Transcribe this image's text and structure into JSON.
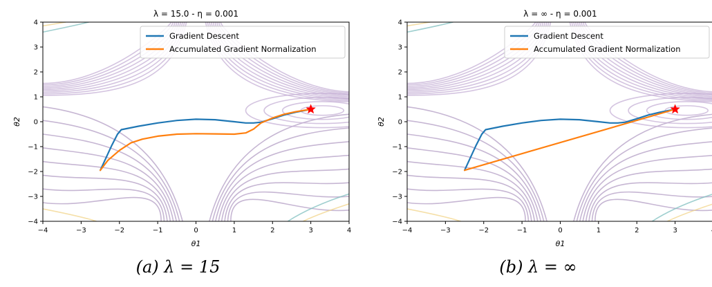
{
  "chart_data": [
    {
      "type": "line",
      "title": "λ = 15.0 - η = 0.001",
      "xlabel": "θ1",
      "ylabel": "θ2",
      "xlim": [
        -4,
        4
      ],
      "ylim": [
        -4,
        4
      ],
      "xticks": [
        -4,
        -3,
        -2,
        -1,
        0,
        1,
        2,
        3,
        4
      ],
      "yticks": [
        -4,
        -3,
        -2,
        -1,
        0,
        1,
        2,
        3,
        4
      ],
      "legend_position": "top-right",
      "target_point": {
        "x": 3,
        "y": 0.5,
        "marker": "star",
        "color": "#ff0000"
      },
      "series": [
        {
          "name": "Gradient Descent",
          "color": "#1f77b4",
          "x": [
            -2.5,
            -2.35,
            -2.2,
            -2.05,
            -1.95,
            -1.5,
            -1.0,
            -0.5,
            0,
            0.5,
            1.0,
            1.3,
            1.5,
            1.7,
            2.0,
            2.3,
            2.6,
            3.0
          ],
          "y": [
            -1.95,
            -1.45,
            -0.95,
            -0.5,
            -0.32,
            -0.18,
            -0.05,
            0.05,
            0.1,
            0.08,
            0.0,
            -0.05,
            -0.05,
            -0.02,
            0.12,
            0.27,
            0.38,
            0.5
          ]
        },
        {
          "name": "Accumulated Gradient Normalization",
          "color": "#ff7f0e",
          "x": [
            -2.5,
            -2.3,
            -2.0,
            -1.7,
            -1.4,
            -1.0,
            -0.5,
            0,
            0.5,
            1.0,
            1.3,
            1.5,
            1.7,
            2.0,
            2.3,
            2.6,
            3.0
          ],
          "y": [
            -1.95,
            -1.55,
            -1.15,
            -0.85,
            -0.7,
            -0.58,
            -0.5,
            -0.48,
            -0.49,
            -0.5,
            -0.45,
            -0.3,
            -0.05,
            0.15,
            0.3,
            0.4,
            0.5
          ]
        }
      ]
    },
    {
      "type": "line",
      "title": "λ = ∞ - η = 0.001",
      "xlabel": "θ1",
      "ylabel": "θ2",
      "xlim": [
        -4,
        4
      ],
      "ylim": [
        -4,
        4
      ],
      "xticks": [
        -4,
        -3,
        -2,
        -1,
        0,
        1,
        2,
        3,
        4
      ],
      "yticks": [
        -4,
        -3,
        -2,
        -1,
        0,
        1,
        2,
        3,
        4
      ],
      "legend_position": "top-right",
      "target_point": {
        "x": 3,
        "y": 0.5,
        "marker": "star",
        "color": "#ff0000"
      },
      "series": [
        {
          "name": "Gradient Descent",
          "color": "#1f77b4",
          "x": [
            -2.5,
            -2.35,
            -2.2,
            -2.05,
            -1.95,
            -1.5,
            -1.0,
            -0.5,
            0,
            0.5,
            1.0,
            1.3,
            1.5,
            1.7,
            2.0,
            2.3,
            2.6,
            3.0
          ],
          "y": [
            -1.95,
            -1.45,
            -0.95,
            -0.5,
            -0.32,
            -0.18,
            -0.05,
            0.05,
            0.1,
            0.08,
            0.0,
            -0.05,
            -0.05,
            -0.02,
            0.12,
            0.27,
            0.38,
            0.5
          ]
        },
        {
          "name": "Accumulated Gradient Normalization",
          "color": "#ff7f0e",
          "x": [
            -2.5,
            3.0
          ],
          "y": [
            -1.95,
            0.5
          ]
        }
      ]
    }
  ],
  "captions": [
    "(a) λ = 15",
    "(b) λ = ∞"
  ],
  "contour_colors": [
    "#c5b0d5",
    "#b39ec4",
    "#7fbfbf",
    "#f2d48a"
  ]
}
